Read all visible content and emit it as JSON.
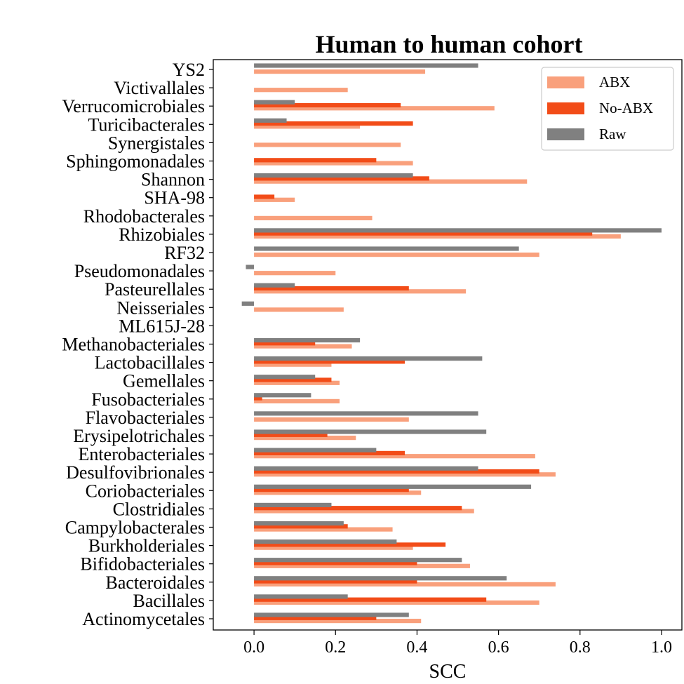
{
  "chart_data": {
    "type": "bar",
    "orientation": "horizontal",
    "title": "Human to human cohort",
    "xlabel": "SCC",
    "ylabel": "",
    "xlim": [
      -0.1,
      1.05
    ],
    "xticks": [
      "0.0",
      "0.2",
      "0.4",
      "0.6",
      "0.8",
      "1.0"
    ],
    "legend_position": "top-right",
    "grid": false,
    "categories": [
      "YS2",
      "Victivallales",
      "Verrucomicrobiales",
      "Turicibacterales",
      "Synergistales",
      "Sphingomonadales",
      "Shannon",
      "SHA-98",
      "Rhodobacterales",
      "Rhizobiales",
      "RF32",
      "Pseudomonadales",
      "Pasteurellales",
      "Neisseriales",
      "ML615J-28",
      "Methanobacteriales",
      "Lactobacillales",
      "Gemellales",
      "Fusobacteriales",
      "Flavobacteriales",
      "Erysipelotrichales",
      "Enterobacteriales",
      "Desulfovibrionales",
      "Coriobacteriales",
      "Clostridiales",
      "Campylobacterales",
      "Burkholderiales",
      "Bifidobacteriales",
      "Bacteroidales",
      "Bacillales",
      "Actinomycetales"
    ],
    "series": [
      {
        "name": "ABX",
        "color": "#f9a07c",
        "values": [
          0.42,
          0.23,
          0.59,
          0.26,
          0.36,
          0.39,
          0.67,
          0.1,
          0.29,
          0.9,
          0.7,
          0.2,
          0.52,
          0.22,
          null,
          0.24,
          0.19,
          0.21,
          0.21,
          0.38,
          0.25,
          0.69,
          0.74,
          0.41,
          0.54,
          0.34,
          0.39,
          0.53,
          0.74,
          0.7,
          0.41
        ]
      },
      {
        "name": "No-ABX",
        "color": "#f24c18",
        "values": [
          null,
          null,
          0.36,
          0.39,
          null,
          0.3,
          0.43,
          0.05,
          null,
          0.83,
          null,
          null,
          0.38,
          null,
          null,
          0.15,
          0.37,
          0.19,
          0.02,
          null,
          0.18,
          0.37,
          0.7,
          0.38,
          0.51,
          0.23,
          0.47,
          0.4,
          0.4,
          0.57,
          0.3
        ]
      },
      {
        "name": "Raw",
        "color": "#808080",
        "values": [
          0.55,
          null,
          0.1,
          0.08,
          null,
          null,
          0.39,
          null,
          null,
          1.0,
          0.65,
          -0.02,
          0.1,
          -0.03,
          null,
          0.26,
          0.56,
          0.15,
          0.14,
          0.55,
          0.57,
          0.3,
          0.55,
          0.68,
          0.19,
          0.22,
          0.35,
          0.51,
          0.62,
          0.23,
          0.38
        ]
      }
    ]
  }
}
